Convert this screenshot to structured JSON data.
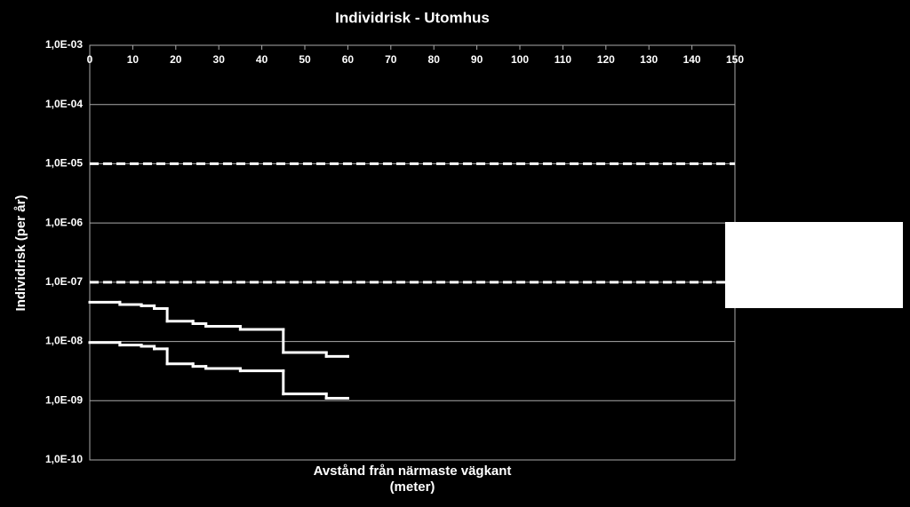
{
  "chart_data": {
    "type": "step-line",
    "title": "Individrisk - Utomhus",
    "xlabel": [
      "Avstånd från närmaste vägkant",
      "(meter)"
    ],
    "ylabel": "Individrisk (per år)",
    "log_y": true,
    "grid": true,
    "color": "#ffffff",
    "xlim": [
      0,
      150
    ],
    "xticks": [
      0,
      10,
      20,
      30,
      40,
      50,
      60,
      70,
      80,
      90,
      100,
      110,
      120,
      130,
      140,
      150
    ],
    "ylim": [
      1e-10,
      0.001
    ],
    "yticks": [
      {
        "value": 1e-10,
        "label": "1,0E-10"
      },
      {
        "value": 1e-09,
        "label": "1,0E-09"
      },
      {
        "value": 1e-08,
        "label": "1,0E-08"
      },
      {
        "value": 1e-07,
        "label": "1,0E-07"
      },
      {
        "value": 1e-06,
        "label": "1,0E-06"
      },
      {
        "value": 1e-05,
        "label": "1,0E-05"
      },
      {
        "value": 0.0001,
        "label": "1,0E-04"
      },
      {
        "value": 0.001,
        "label": "1,0E-03"
      }
    ],
    "series": [
      {
        "x": [
          0,
          7,
          12,
          15,
          18,
          24,
          27,
          35,
          45,
          55,
          60
        ],
        "values": [
          4.6e-08,
          4.2e-08,
          4e-08,
          3.6e-08,
          2.2e-08,
          2e-08,
          1.8e-08,
          1.6e-08,
          6.5e-09,
          5.6e-09,
          5.6e-09
        ],
        "color": "#ffffff"
      },
      {
        "x": [
          0,
          7,
          12,
          15,
          18,
          24,
          27,
          35,
          45,
          55,
          60
        ],
        "values": [
          9.6e-09,
          8.7e-09,
          8.3e-09,
          7.5e-09,
          4.2e-09,
          3.8e-09,
          3.5e-09,
          3.2e-09,
          1.3e-09,
          1.1e-09,
          1.1e-09
        ],
        "color": "#ffffff"
      },
      {
        "x": [
          0,
          150
        ],
        "values": [
          1e-05,
          1e-05
        ],
        "color": "#ffffff",
        "dashed": true
      },
      {
        "x": [
          0,
          150
        ],
        "values": [
          1e-07,
          1e-07
        ],
        "color": "#ffffff",
        "dashed": true
      }
    ]
  }
}
